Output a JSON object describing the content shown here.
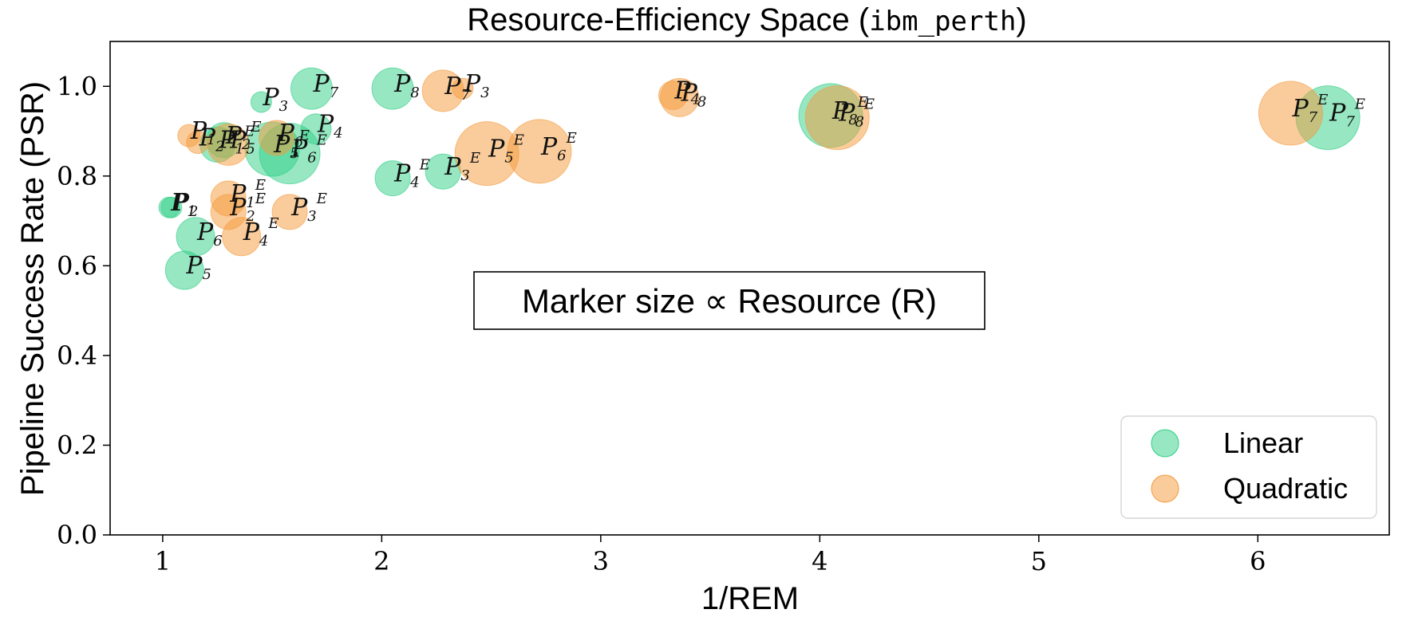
{
  "chart_data": {
    "type": "scatter",
    "title": {
      "main": "Resource-Efficiency Space (",
      "code": "ibm_perth",
      "end": ")"
    },
    "xlabel": "1/REM",
    "ylabel": "Pipeline Success Rate (PSR)",
    "xlim": [
      0.76,
      6.6
    ],
    "ylim": [
      0.0,
      1.1
    ],
    "xticks": [
      "1",
      "2",
      "3",
      "4",
      "5",
      "6"
    ],
    "yticks": [
      "0.0",
      "0.2",
      "0.4",
      "0.6",
      "0.8",
      "1.0"
    ],
    "grid": false,
    "legend_position": "bottom-right",
    "annotation": "Marker size ∝ Resource (R)",
    "colors": {
      "Linear": "#2ecf85",
      "Quadratic": "#f5993a"
    },
    "series": [
      {
        "name": "Linear",
        "points": [
          {
            "label": "P1",
            "x": 1.03,
            "y": 0.73,
            "size": 13
          },
          {
            "label": "P2",
            "x": 1.04,
            "y": 0.73,
            "size": 13
          },
          {
            "label": "P3",
            "x": 1.45,
            "y": 0.965,
            "size": 13
          },
          {
            "label": "P4",
            "x": 1.7,
            "y": 0.905,
            "size": 19
          },
          {
            "label": "P5",
            "x": 1.1,
            "y": 0.59,
            "size": 24
          },
          {
            "label": "P6",
            "x": 1.15,
            "y": 0.665,
            "size": 24
          },
          {
            "label": "P7",
            "x": 1.68,
            "y": 0.995,
            "size": 26
          },
          {
            "label": "P8",
            "x": 2.05,
            "y": 0.995,
            "size": 26
          },
          {
            "label": "P1E",
            "x": 1.25,
            "y": 0.87,
            "size": 22
          },
          {
            "label": "P2E",
            "x": 1.28,
            "y": 0.88,
            "size": 22
          },
          {
            "label": "P3E",
            "x": 2.28,
            "y": 0.81,
            "size": 22
          },
          {
            "label": "P4E",
            "x": 2.05,
            "y": 0.795,
            "size": 22
          },
          {
            "label": "P5E",
            "x": 1.5,
            "y": 0.86,
            "size": 34
          },
          {
            "label": "P6E",
            "x": 1.58,
            "y": 0.85,
            "size": 38
          },
          {
            "label": "P7E",
            "x": 6.32,
            "y": 0.93,
            "size": 40
          },
          {
            "label": "P8E",
            "x": 4.05,
            "y": 0.935,
            "size": 40
          }
        ]
      },
      {
        "name": "Quadratic",
        "points": [
          {
            "label": "P1",
            "x": 1.12,
            "y": 0.89,
            "size": 14
          },
          {
            "label": "P2",
            "x": 1.16,
            "y": 0.875,
            "size": 14
          },
          {
            "label": "P3",
            "x": 2.37,
            "y": 0.995,
            "size": 13
          },
          {
            "label": "P4",
            "x": 3.33,
            "y": 0.98,
            "size": 18
          },
          {
            "label": "P7",
            "x": 2.28,
            "y": 0.99,
            "size": 26
          },
          {
            "label": "P8",
            "x": 3.36,
            "y": 0.975,
            "size": 24
          },
          {
            "label": "P1E",
            "x": 1.3,
            "y": 0.75,
            "size": 22
          },
          {
            "label": "P2E",
            "x": 1.3,
            "y": 0.72,
            "size": 22
          },
          {
            "label": "P3E",
            "x": 1.58,
            "y": 0.72,
            "size": 22
          },
          {
            "label": "P4E",
            "x": 1.36,
            "y": 0.665,
            "size": 24
          },
          {
            "label": "P5E",
            "x": 2.48,
            "y": 0.85,
            "size": 40
          },
          {
            "label": "P6E",
            "x": 2.72,
            "y": 0.855,
            "size": 40
          },
          {
            "label": "P7E",
            "x": 6.15,
            "y": 0.94,
            "size": 40
          },
          {
            "label": "P8E",
            "x": 4.08,
            "y": 0.93,
            "size": 40
          },
          {
            "label": "P5",
            "x": 1.3,
            "y": 0.87,
            "size": 26
          },
          {
            "label": "P6",
            "x": 1.52,
            "y": 0.885,
            "size": 22
          }
        ]
      }
    ]
  }
}
